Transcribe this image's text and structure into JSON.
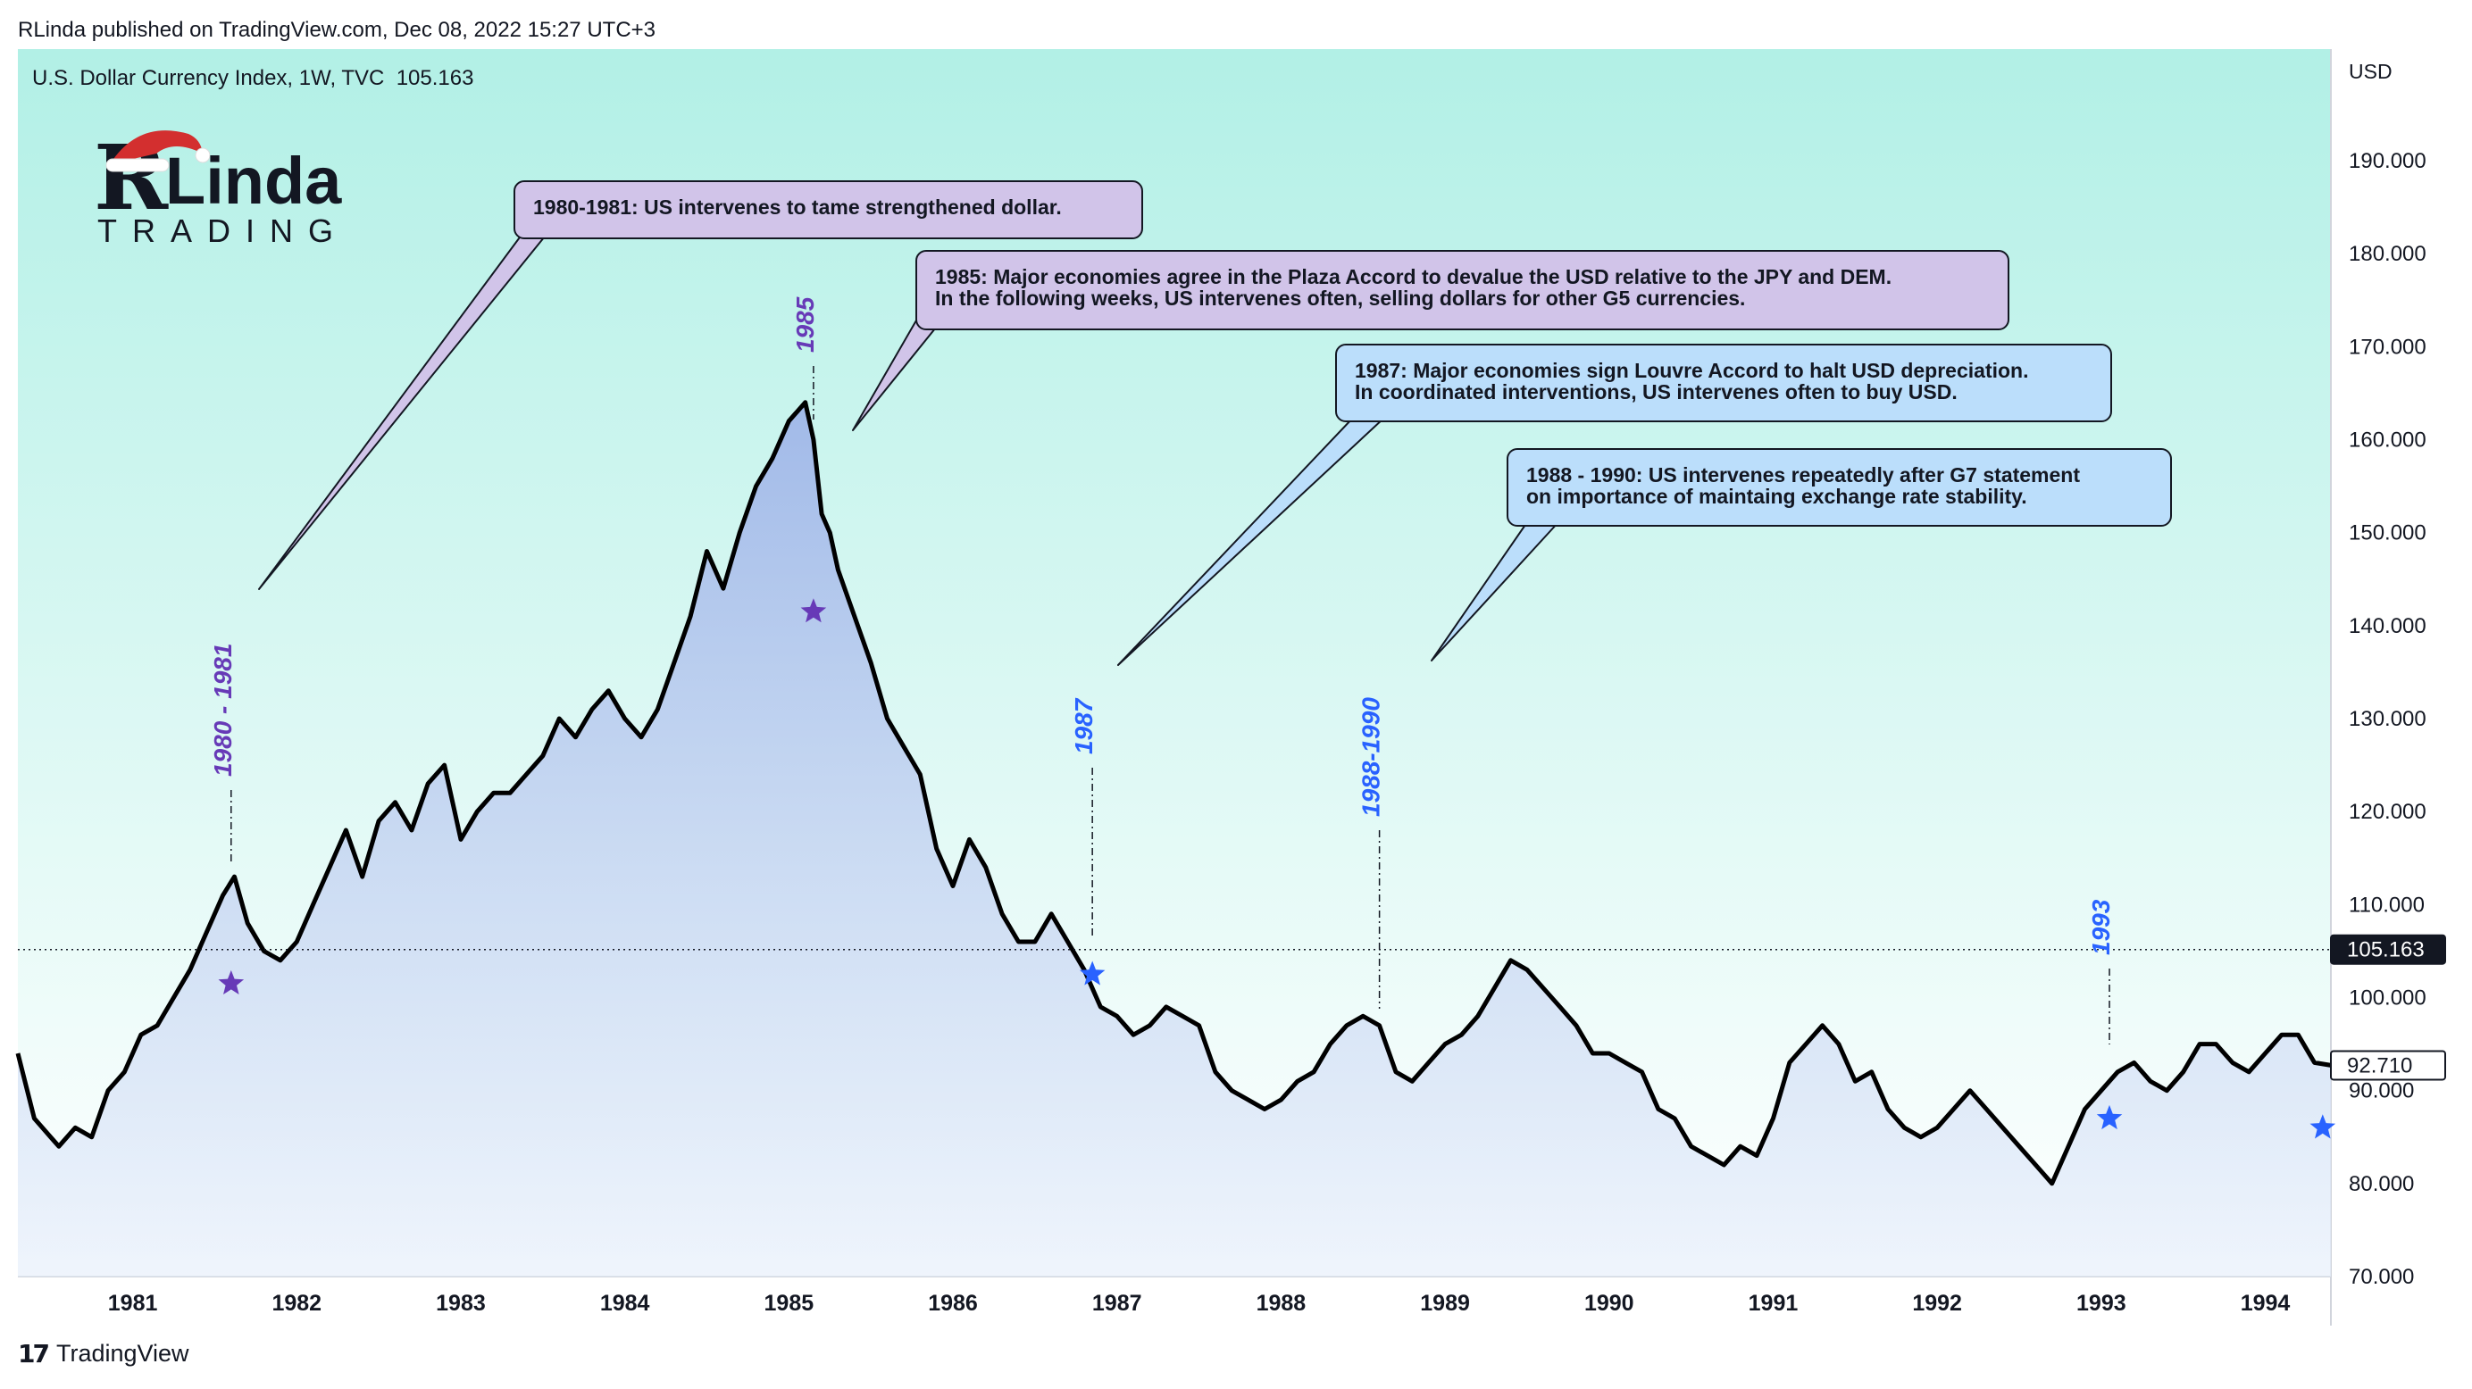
{
  "header": {
    "published": "RLinda published on TradingView.com, Dec 08, 2022 15:27 UTC+3"
  },
  "symbol": {
    "name": "U.S. Dollar Currency Index, 1W, TVC",
    "value": "105.163"
  },
  "logo": {
    "brand": "Linda",
    "brand_initial": "R",
    "sub": "TRADING"
  },
  "footer": {
    "brand": "TradingView",
    "logo_glyph": "17"
  },
  "colors": {
    "bg_top": "#b2f0e6",
    "bg_bottom": "#ffffff",
    "fill_top": "#a9bfe9",
    "line": "#000000",
    "purple": "#673ab7",
    "blue": "#2962ff",
    "callout_purple": "#d1c4e9",
    "callout_blue": "#bbdefb"
  },
  "callouts": [
    {
      "text": "1980-1981: US intervenes to tame strengthened dollar.",
      "style": "purple"
    },
    {
      "text": "1985: Major economies agree in the Plaza Accord to devalue the USD relative to the JPY and DEM.\nIn the following weeks, US intervenes often, selling dollars for other G5 currencies.",
      "style": "purple"
    },
    {
      "text": "1987: Major economies sign Louvre Accord to halt USD depreciation.\nIn coordinated interventions, US intervenes often to buy USD.",
      "style": "blue"
    },
    {
      "text": "1988 - 1990: US intervenes repeatedly after G7 statement\non importance of maintaing exchange rate stability.",
      "style": "blue"
    }
  ],
  "chart_data": {
    "type": "line",
    "title": "U.S. Dollar Currency Index, 1W, TVC",
    "ylabel": "USD",
    "ylim": [
      70,
      202
    ],
    "xlim": [
      1980.3,
      1994.4
    ],
    "grid": false,
    "y_ticks": [
      "190.000",
      "180.000",
      "170.000",
      "160.000",
      "150.000",
      "140.000",
      "130.000",
      "120.000",
      "110.000",
      "100.000",
      "90.000",
      "80.000",
      "70.000"
    ],
    "y_tick_values": [
      190,
      180,
      170,
      160,
      150,
      140,
      130,
      120,
      110,
      100,
      90,
      80,
      70
    ],
    "x_ticks": [
      "1981",
      "1982",
      "1983",
      "1984",
      "1985",
      "1986",
      "1987",
      "1988",
      "1989",
      "1990",
      "1991",
      "1992",
      "1993",
      "1994"
    ],
    "x_tick_values": [
      1981,
      1982,
      1983,
      1984,
      1985,
      1986,
      1987,
      1988,
      1989,
      1990,
      1991,
      1992,
      1993,
      1994
    ],
    "current_price": {
      "label": "105.163",
      "value": 105.163
    },
    "last_close": {
      "label": "92.710",
      "value": 92.71
    },
    "series": [
      {
        "x": [
          1980.3,
          1980.4,
          1980.5,
          1980.55,
          1980.65,
          1980.75,
          1980.85,
          1980.95,
          1981.05,
          1981.15,
          1981.25,
          1981.35,
          1981.45,
          1981.55,
          1981.62,
          1981.7,
          1981.8,
          1981.9,
          1982.0,
          1982.1,
          1982.2,
          1982.3,
          1982.4,
          1982.5,
          1982.6,
          1982.7,
          1982.8,
          1982.9,
          1983.0,
          1983.1,
          1983.2,
          1983.3,
          1983.4,
          1983.5,
          1983.6,
          1983.7,
          1983.8,
          1983.9,
          1984.0,
          1984.1,
          1984.2,
          1984.3,
          1984.4,
          1984.5,
          1984.6,
          1984.7,
          1984.8,
          1984.9,
          1985.0,
          1985.1,
          1985.15,
          1985.2,
          1985.25,
          1985.3,
          1985.4,
          1985.5,
          1985.6,
          1985.7,
          1985.8,
          1985.9,
          1986.0,
          1986.1,
          1986.2,
          1986.3,
          1986.4,
          1986.5,
          1986.6,
          1986.7,
          1986.8,
          1986.9,
          1987.0,
          1987.1,
          1987.2,
          1987.3,
          1987.4,
          1987.5,
          1987.6,
          1987.7,
          1987.8,
          1987.9,
          1988.0,
          1988.1,
          1988.2,
          1988.3,
          1988.4,
          1988.5,
          1988.6,
          1988.7,
          1988.8,
          1988.9,
          1989.0,
          1989.1,
          1989.2,
          1989.3,
          1989.4,
          1989.5,
          1989.6,
          1989.7,
          1989.8,
          1989.9,
          1990.0,
          1990.1,
          1990.2,
          1990.3,
          1990.4,
          1990.5,
          1990.6,
          1990.7,
          1990.8,
          1990.9,
          1991.0,
          1991.1,
          1991.2,
          1991.3,
          1991.4,
          1991.5,
          1991.6,
          1991.7,
          1991.8,
          1991.9,
          1992.0,
          1992.1,
          1992.2,
          1992.3,
          1992.4,
          1992.5,
          1992.6,
          1992.7,
          1992.8,
          1992.9,
          1993.0,
          1993.1,
          1993.2,
          1993.3,
          1993.4,
          1993.5,
          1993.6,
          1993.7,
          1993.8,
          1993.9,
          1994.0,
          1994.1,
          1994.2,
          1994.3,
          1994.4
        ],
        "y": [
          94,
          87,
          85,
          84,
          86,
          85,
          90,
          92,
          96,
          97,
          100,
          103,
          107,
          111,
          113,
          108,
          105,
          104,
          106,
          110,
          114,
          118,
          113,
          119,
          121,
          118,
          123,
          125,
          117,
          120,
          122,
          122,
          124,
          126,
          130,
          128,
          131,
          133,
          130,
          128,
          131,
          136,
          141,
          148,
          144,
          150,
          155,
          158,
          162,
          164,
          160,
          152,
          150,
          146,
          141,
          136,
          130,
          127,
          124,
          116,
          112,
          117,
          114,
          109,
          106,
          106,
          109,
          106,
          103,
          99,
          98,
          96,
          97,
          99,
          98,
          97,
          92,
          90,
          89,
          88,
          89,
          91,
          92,
          95,
          97,
          98,
          97,
          92,
          91,
          93,
          95,
          96,
          98,
          101,
          104,
          103,
          101,
          99,
          97,
          94,
          94,
          93,
          92,
          88,
          87,
          84,
          83,
          82,
          84,
          83,
          87,
          93,
          95,
          97,
          95,
          91,
          92,
          88,
          86,
          85,
          86,
          88,
          90,
          88,
          86,
          84,
          82,
          80,
          84,
          88,
          90,
          92,
          93,
          91,
          90,
          92,
          95,
          95,
          93,
          92,
          94,
          96,
          96,
          93,
          92.71
        ]
      }
    ],
    "annotations": [
      {
        "label": "1980 - 1981",
        "x": 1981.6,
        "color": "purple",
        "marker": "star",
        "marker_y": 101.5
      },
      {
        "label": "1985",
        "x": 1985.15,
        "color": "purple",
        "marker": "star",
        "marker_y": 141.5
      },
      {
        "label": "1987",
        "x": 1986.85,
        "color": "blue",
        "marker": "star",
        "marker_y": 102.5
      },
      {
        "label": "1988-1990",
        "x": 1988.6,
        "color": "blue",
        "marker": "none"
      },
      {
        "label": "1993",
        "x": 1993.05,
        "color": "blue",
        "marker": "star",
        "marker_y": 87
      },
      {
        "label": "",
        "x": 1994.35,
        "color": "blue",
        "marker": "star",
        "marker_y": 86
      }
    ]
  }
}
